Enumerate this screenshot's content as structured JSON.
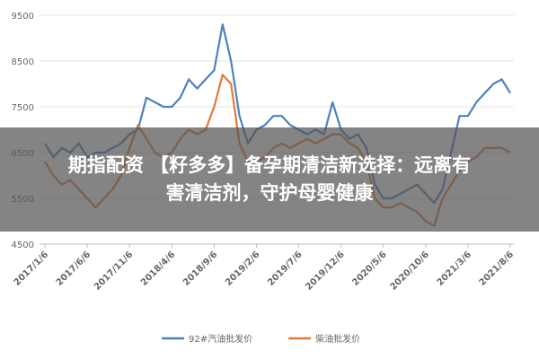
{
  "chart_data": {
    "type": "line",
    "categories": [
      "2017/1/6",
      null,
      null,
      null,
      null,
      "2017/6/6",
      null,
      null,
      null,
      null,
      "2017/11/6",
      null,
      null,
      null,
      null,
      "2018/4/6",
      null,
      null,
      null,
      null,
      "2018/9/6",
      null,
      null,
      null,
      null,
      "2019/2/6",
      null,
      null,
      null,
      null,
      "2019/7/6",
      null,
      null,
      null,
      null,
      "2019/12/6",
      null,
      null,
      null,
      null,
      "2020/5/6",
      null,
      null,
      null,
      null,
      "2020/10/6",
      null,
      null,
      null,
      null,
      "2021/3/6",
      null,
      null,
      null,
      null,
      "2021/8/6"
    ],
    "series": [
      {
        "name": "92#汽油批发价",
        "color": "#4f81bd",
        "values": [
          6700,
          6400,
          6600,
          6500,
          6700,
          6400,
          6500,
          6500,
          6600,
          6700,
          6900,
          7000,
          7700,
          7600,
          7500,
          7500,
          7700,
          8100,
          7900,
          8100,
          8300,
          9300,
          8500,
          7300,
          6700,
          7000,
          7100,
          7300,
          7300,
          7100,
          7000,
          6900,
          7000,
          6900,
          7600,
          7000,
          6800,
          6900,
          6600,
          5800,
          5500,
          5500,
          5600,
          5700,
          5800,
          5600,
          5400,
          5700,
          6500,
          7300,
          7300,
          7600,
          7800,
          8000,
          8100,
          7800
        ]
      },
      {
        "name": "柴油批发价",
        "color": "#e07b39",
        "values": [
          6300,
          6000,
          5800,
          5900,
          5700,
          5500,
          5300,
          5500,
          5700,
          6000,
          6600,
          7100,
          6800,
          6500,
          6400,
          6500,
          6800,
          7000,
          6900,
          7000,
          7500,
          8200,
          8000,
          6700,
          6300,
          6300,
          6400,
          6600,
          6700,
          6600,
          6700,
          6800,
          6700,
          6800,
          6900,
          6900,
          6700,
          6600,
          6300,
          5500,
          5300,
          5300,
          5400,
          5300,
          5200,
          5000,
          4900,
          5500,
          5800,
          6100,
          6300,
          6400,
          6600,
          6600,
          6600,
          6500
        ]
      }
    ],
    "ylim": [
      4500,
      9500
    ],
    "yticks": [
      4500,
      5500,
      6500,
      7500,
      8500,
      9500
    ],
    "grid": true,
    "legend": "bottom"
  },
  "overlay": {
    "lines": [
      "期指配资 【籽多多】备孕期清洁新选择：远离有",
      "害清洁剂，守护母婴健康"
    ]
  }
}
